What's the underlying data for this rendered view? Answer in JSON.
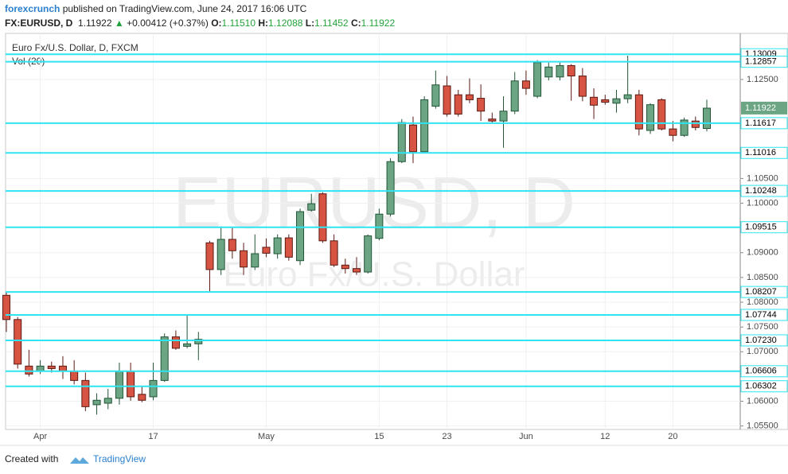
{
  "header": {
    "publisher": "forexcrunch",
    "published": "published on TradingView.com, June 24, 2017 16:06 UTC",
    "symbol": "FX:EURUSD, D",
    "last": "1.11922",
    "arrow": "▲",
    "change": "+0.00412 (+0.37%)",
    "o_label": "O:",
    "o": "1.11510",
    "h_label": "H:",
    "h": "1.12088",
    "l_label": "L:",
    "l": "1.11452",
    "c_label": "C:",
    "c": "1.11922"
  },
  "chart_data": {
    "type": "candlestick",
    "legend": "Euro Fx/U.S. Dollar, D, FXCM",
    "indicator": "Vol (20)",
    "watermark": "EURUSD, D",
    "watermark_subtitle": "Euro Fx/U.S. Dollar",
    "categories": [
      null,
      null,
      null,
      "Apr",
      null,
      null,
      null,
      null,
      null,
      null,
      null,
      null,
      null,
      "17",
      null,
      null,
      null,
      null,
      null,
      null,
      null,
      null,
      null,
      "May",
      null,
      null,
      null,
      null,
      null,
      null,
      null,
      null,
      null,
      "15",
      null,
      null,
      null,
      null,
      null,
      "23",
      null,
      null,
      null,
      null,
      null,
      null,
      "Jun",
      null,
      null,
      null,
      null,
      null,
      null,
      "12",
      null,
      null,
      null,
      null,
      null,
      "20",
      null,
      null,
      null
    ],
    "open": [
      1.0814,
      1.0765,
      1.0671,
      1.0661,
      1.0671,
      1.0671,
      1.0661,
      1.0642,
      1.0593,
      1.0596,
      1.0606,
      1.0661,
      1.0614,
      1.0609,
      1.0642,
      1.073,
      1.0711,
      1.0716,
      1.092,
      1.0866,
      1.0927,
      1.0904,
      1.0871,
      1.0911,
      1.0898,
      1.093,
      1.0884,
      1.0986,
      1.1019,
      1.0924,
      1.0875,
      1.0868,
      1.0861,
      1.0929,
      1.0978,
      1.1084,
      1.1158,
      1.1104,
      1.1196,
      1.1237,
      1.1219,
      1.1219,
      1.1212,
      1.117,
      1.1166,
      1.1186,
      1.1247,
      1.1216,
      1.1255,
      1.1255,
      1.1278,
      1.1257,
      1.1214,
      1.1209,
      1.1202,
      1.1211,
      1.1219,
      1.1147,
      1.1209,
      1.115,
      1.1137,
      1.1166,
      1.1151
    ],
    "high": [
      1.0822,
      1.077,
      1.0704,
      1.0683,
      1.068,
      1.0691,
      1.0683,
      1.0658,
      1.0616,
      1.0625,
      1.0678,
      1.0678,
      1.0629,
      1.0678,
      1.0737,
      1.0743,
      1.0776,
      1.074,
      1.0924,
      1.0953,
      1.095,
      1.092,
      1.0937,
      1.0929,
      1.0937,
      1.0937,
      1.0989,
      1.1019,
      1.1022,
      1.0937,
      1.0888,
      1.0891,
      1.0937,
      1.0989,
      1.1091,
      1.117,
      1.1175,
      1.1216,
      1.1268,
      1.1257,
      1.1229,
      1.1252,
      1.124,
      1.1183,
      1.1216,
      1.1265,
      1.1268,
      1.1289,
      1.1284,
      1.1284,
      1.1281,
      1.1273,
      1.1232,
      1.1219,
      1.1229,
      1.1298,
      1.1229,
      1.1202,
      1.1212,
      1.1166,
      1.1173,
      1.1175,
      1.1209
    ],
    "low": [
      1.074,
      1.0666,
      1.065,
      1.0655,
      1.0658,
      1.0645,
      1.0634,
      1.058,
      1.0573,
      1.0584,
      1.0593,
      1.0601,
      1.0598,
      1.0602,
      1.0639,
      1.0704,
      1.0707,
      1.0683,
      1.0822,
      1.0855,
      1.0888,
      1.0855,
      1.0865,
      1.0891,
      1.0888,
      1.0884,
      1.0875,
      1.0983,
      1.092,
      1.0871,
      1.0858,
      1.0855,
      1.0858,
      1.0925,
      1.0973,
      1.1081,
      1.1081,
      1.1101,
      1.1191,
      1.1175,
      1.1175,
      1.1202,
      1.1166,
      1.1163,
      1.1112,
      1.118,
      1.1219,
      1.1212,
      1.1248,
      1.1248,
      1.1207,
      1.1206,
      1.117,
      1.1199,
      1.1183,
      1.1202,
      1.1137,
      1.114,
      1.1147,
      1.1125,
      1.1134,
      1.1147,
      1.1145
    ],
    "close": [
      1.0765,
      1.0675,
      1.0655,
      1.0671,
      1.0666,
      1.0661,
      1.0642,
      1.0589,
      1.0602,
      1.0606,
      1.0661,
      1.0609,
      1.0602,
      1.0642,
      1.073,
      1.0707,
      1.0716,
      1.0725,
      1.0866,
      1.0927,
      1.0904,
      1.0871,
      1.0898,
      1.0899,
      1.093,
      1.0891,
      1.0983,
      1.0999,
      1.0924,
      1.0875,
      1.0868,
      1.0861,
      1.0934,
      1.0978,
      1.1084,
      1.1163,
      1.1104,
      1.1209,
      1.1239,
      1.118,
      1.118,
      1.1209,
      1.1186,
      1.1166,
      1.1186,
      1.1247,
      1.1232,
      1.1284,
      1.1275,
      1.1278,
      1.1257,
      1.1216,
      1.1198,
      1.1204,
      1.1211,
      1.1219,
      1.115,
      1.1199,
      1.115,
      1.1137,
      1.1168,
      1.1153,
      1.1192
    ],
    "up_color": "#6ba583",
    "down_color": "#d75442",
    "ylim": [
      1.0543,
      1.1343
    ],
    "yticks": [
      {
        "value": 1.055,
        "label": "1.05500"
      },
      {
        "value": 1.06,
        "label": "1.06000"
      },
      {
        "value": 1.07,
        "label": "1.07000"
      },
      {
        "value": 1.075,
        "label": "1.07500"
      },
      {
        "value": 1.08,
        "label": "1.08000"
      },
      {
        "value": 1.085,
        "label": "1.08500"
      },
      {
        "value": 1.09,
        "label": "1.09000"
      },
      {
        "value": 1.1,
        "label": "1.10000"
      },
      {
        "value": 1.105,
        "label": "1.10500"
      },
      {
        "value": 1.125,
        "label": "1.12500"
      }
    ],
    "grid": true,
    "levels": [
      {
        "value": 1.13009,
        "label": "1.13009"
      },
      {
        "value": 1.12857,
        "label": "1.12857"
      },
      {
        "value": 1.11617,
        "label": "1.11617"
      },
      {
        "value": 1.11016,
        "label": "1.11016"
      },
      {
        "value": 1.10248,
        "label": "1.10248"
      },
      {
        "value": 1.09515,
        "label": "1.09515"
      },
      {
        "value": 1.08207,
        "label": "1.08207"
      },
      {
        "value": 1.07744,
        "label": "1.07744"
      },
      {
        "value": 1.0723,
        "label": "1.07230"
      },
      {
        "value": 1.06606,
        "label": "1.06606"
      },
      {
        "value": 1.06302,
        "label": "1.06302"
      }
    ],
    "level_color": "#2fe4f2",
    "last_price": {
      "value": 1.11922,
      "label": "1.11922"
    }
  },
  "footer": {
    "created": "Created with",
    "brand": "TradingView"
  }
}
